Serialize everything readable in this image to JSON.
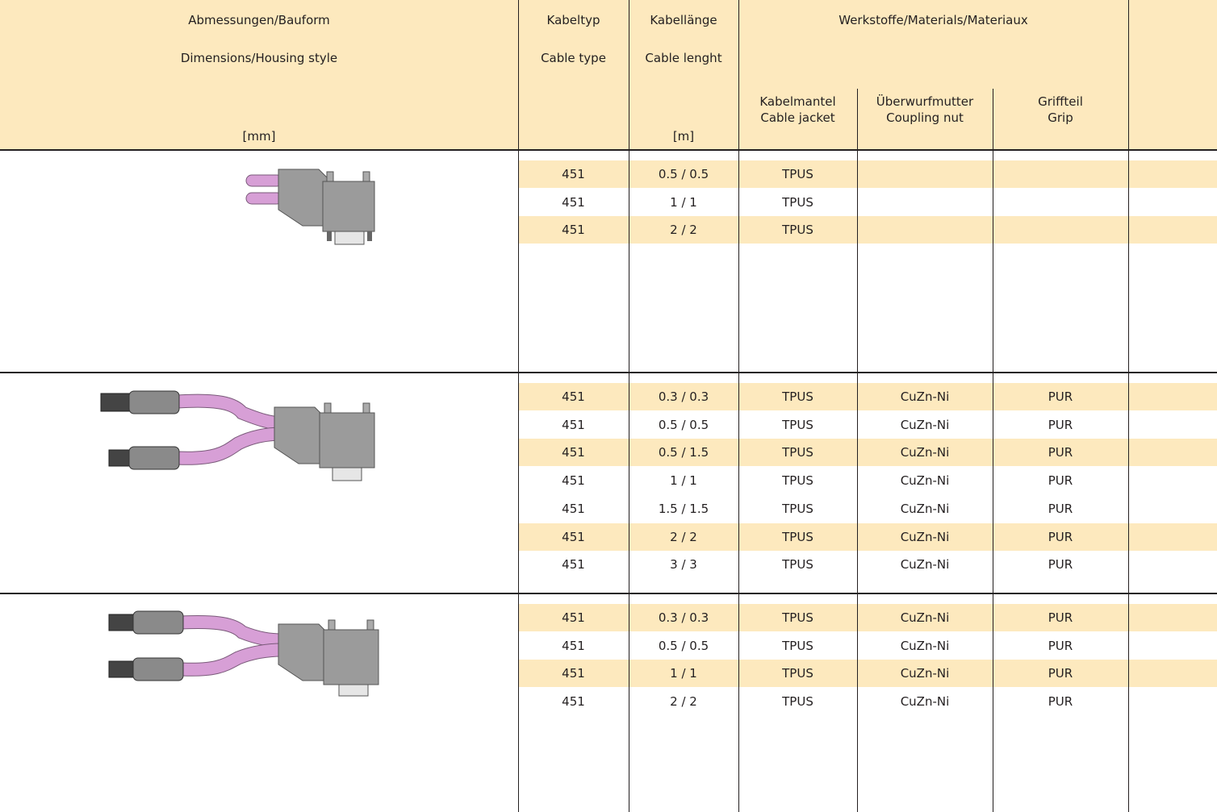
{
  "header": {
    "dimensions": {
      "de": "Abmessungen/Bauform",
      "en": "Dimensions/Housing style",
      "unit": "[mm]"
    },
    "cable_type": {
      "de": "Kabeltyp",
      "en": "Cable type"
    },
    "cable_length": {
      "de": "Kabellänge",
      "en": "Cable lenght",
      "unit": "[m]"
    },
    "materials": {
      "title": "Werkstoffe/Materials/Materiaux",
      "columns": [
        [
          "Kabelmantel",
          "Cable jacket"
        ],
        [
          "Überwurfmutter",
          "Coupling nut"
        ],
        [
          "Griffteil",
          "Grip"
        ]
      ]
    }
  },
  "sections": [
    {
      "rows": [
        {
          "cells": [
            "451",
            "0.5 / 0.5",
            "TPUS"
          ],
          "highlight": true
        },
        {
          "cells": [
            "451",
            "1 / 1",
            "TPUS"
          ],
          "highlight": false
        },
        {
          "cells": [
            "451",
            "2 / 2",
            "TPUS"
          ],
          "highlight": true
        }
      ]
    },
    {
      "rows": [
        {
          "cells": [
            "451",
            "0.3 / 0.3",
            "TPUS",
            "CuZn-Ni",
            "PUR"
          ],
          "highlight": true
        },
        {
          "cells": [
            "451",
            "0.5 / 0.5",
            "TPUS",
            "CuZn-Ni",
            "PUR"
          ],
          "highlight": false
        },
        {
          "cells": [
            "451",
            "0.5 / 1.5",
            "TPUS",
            "CuZn-Ni",
            "PUR"
          ],
          "highlight": true
        },
        {
          "cells": [
            "451",
            "1 / 1",
            "TPUS",
            "CuZn-Ni",
            "PUR"
          ],
          "highlight": false
        },
        {
          "cells": [
            "451",
            "1.5 / 1.5",
            "TPUS",
            "CuZn-Ni",
            "PUR"
          ],
          "highlight": false
        },
        {
          "cells": [
            "451",
            "2 / 2",
            "TPUS",
            "CuZn-Ni",
            "PUR"
          ],
          "highlight": true
        },
        {
          "cells": [
            "451",
            "3 / 3",
            "TPUS",
            "CuZn-Ni",
            "PUR"
          ],
          "highlight": false
        }
      ]
    },
    {
      "rows": [
        {
          "cells": [
            "451",
            "0.3 / 0.3",
            "TPUS",
            "CuZn-Ni",
            "PUR"
          ],
          "highlight": true
        },
        {
          "cells": [
            "451",
            "0.5 / 0.5",
            "TPUS",
            "CuZn-Ni",
            "PUR"
          ],
          "highlight": false
        },
        {
          "cells": [
            "451",
            "1 / 1",
            "TPUS",
            "CuZn-Ni",
            "PUR"
          ],
          "highlight": true
        },
        {
          "cells": [
            "451",
            "2 / 2",
            "TPUS",
            "CuZn-Ni",
            "PUR"
          ],
          "highlight": false
        }
      ]
    }
  ]
}
